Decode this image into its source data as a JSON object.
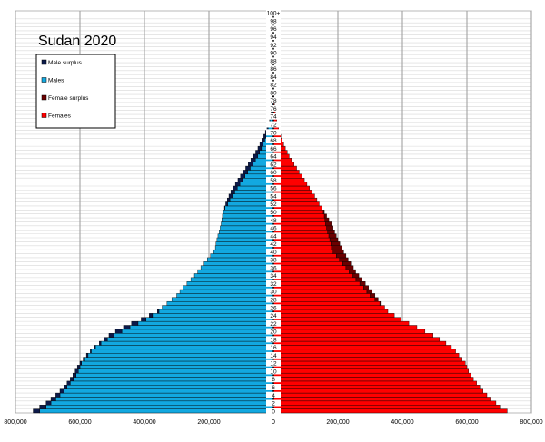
{
  "chart_data": {
    "type": "bar",
    "title": "Sudan 2020",
    "x_ticks": [
      "800,000",
      "600,000",
      "400,000",
      "200,000",
      "0",
      "200,000",
      "400,000",
      "600,000",
      "800,000"
    ],
    "x_tick_values": [
      -800000,
      -600000,
      -400000,
      -200000,
      0,
      200000,
      400000,
      600000,
      800000
    ],
    "xlim": [
      -800000,
      800000
    ],
    "grid": true,
    "legend_position": "top-left",
    "legend": [
      {
        "label": "Male surplus",
        "color": "#0c1a4a"
      },
      {
        "label": "Males",
        "color": "#12a8e0"
      },
      {
        "label": "Female surplus",
        "color": "#6b0000"
      },
      {
        "label": "Females",
        "color": "#ff0000"
      }
    ],
    "age_labels": [
      "0",
      "",
      "2",
      "",
      "4",
      "",
      "6",
      "",
      "8",
      "",
      "10",
      "",
      "12",
      "",
      "14",
      "",
      "16",
      "",
      "18",
      "",
      "20",
      "",
      "22",
      "",
      "24",
      "",
      "26",
      "",
      "28",
      "",
      "30",
      "",
      "32",
      "",
      "34",
      "",
      "36",
      "",
      "38",
      "",
      "40",
      "",
      "42",
      "",
      "44",
      "",
      "46",
      "",
      "48",
      "",
      "50",
      "",
      "52",
      "",
      "54",
      "",
      "56",
      "",
      "58",
      "",
      "60",
      "",
      "62",
      "",
      "64",
      "",
      "66",
      "",
      "68",
      "",
      "70",
      "",
      "72",
      "",
      "74",
      "",
      "76",
      "",
      "78",
      "",
      "80",
      "",
      "82",
      "",
      "84",
      "",
      "86",
      "",
      "88",
      "",
      "90",
      "",
      "92",
      "",
      "94",
      "",
      "96",
      "",
      "98",
      "",
      "100+"
    ],
    "ages": [
      0,
      1,
      2,
      3,
      4,
      5,
      6,
      7,
      8,
      9,
      10,
      11,
      12,
      13,
      14,
      15,
      16,
      17,
      18,
      19,
      20,
      21,
      22,
      23,
      24,
      25,
      26,
      27,
      28,
      29,
      30,
      31,
      32,
      33,
      34,
      35,
      36,
      37,
      38,
      39,
      40,
      41,
      42,
      43,
      44,
      45,
      46,
      47,
      48,
      49,
      50,
      51,
      52,
      53,
      54,
      55,
      56,
      57,
      58,
      59,
      60,
      61,
      62,
      63,
      64,
      65,
      66,
      67,
      68,
      69,
      70,
      71,
      72,
      73,
      74,
      75,
      76,
      77,
      78,
      79,
      80,
      81,
      82,
      83,
      84,
      85,
      86,
      87,
      88,
      89,
      90,
      91,
      92,
      93,
      94,
      95,
      96,
      97,
      98,
      99,
      100
    ],
    "males": [
      745000,
      725000,
      705000,
      690000,
      675000,
      662000,
      650000,
      640000,
      630000,
      622000,
      615000,
      608000,
      600000,
      590000,
      580000,
      568000,
      555000,
      540000,
      525000,
      510000,
      490000,
      465000,
      440000,
      410000,
      385000,
      360000,
      345000,
      330000,
      315000,
      300000,
      290000,
      280000,
      268000,
      256000,
      245000,
      235000,
      225000,
      215000,
      205000,
      195000,
      185000,
      180000,
      178000,
      175000,
      172000,
      168000,
      165000,
      162000,
      160000,
      158000,
      155000,
      152000,
      148000,
      143000,
      138000,
      132000,
      125000,
      118000,
      110000,
      102000,
      94000,
      86000,
      78000,
      70000,
      62000,
      55000,
      48000,
      42000,
      36000,
      30000,
      25000,
      20000,
      16000,
      12000,
      9000,
      7000,
      5500,
      4200,
      3200,
      2400,
      1800,
      1300,
      900,
      650,
      450,
      300,
      200,
      130,
      80,
      50,
      30,
      20,
      12,
      8,
      5,
      3,
      2,
      1,
      1,
      0,
      0
    ],
    "females": [
      725000,
      705000,
      690000,
      675000,
      662000,
      650000,
      640000,
      630000,
      620000,
      612000,
      605000,
      600000,
      595000,
      585000,
      575000,
      565000,
      552000,
      535000,
      515000,
      495000,
      470000,
      445000,
      420000,
      395000,
      375000,
      355000,
      345000,
      335000,
      325000,
      315000,
      305000,
      295000,
      285000,
      275000,
      265000,
      255000,
      248000,
      240000,
      232000,
      225000,
      218000,
      212000,
      206000,
      200000,
      195000,
      190000,
      185000,
      180000,
      172000,
      165000,
      158000,
      150000,
      142000,
      135000,
      128000,
      120000,
      112000,
      104000,
      96000,
      88000,
      80000,
      72000,
      64000,
      56000,
      49000,
      43000,
      37000,
      32000,
      27000,
      23000,
      19000,
      16000,
      13000,
      10500,
      8000,
      6000,
      4500,
      3400,
      2600,
      1900,
      1400,
      1000,
      700,
      500,
      350,
      240,
      160,
      100,
      65,
      40,
      25,
      15,
      10,
      6,
      4,
      2,
      1,
      1,
      0,
      0,
      0
    ]
  }
}
